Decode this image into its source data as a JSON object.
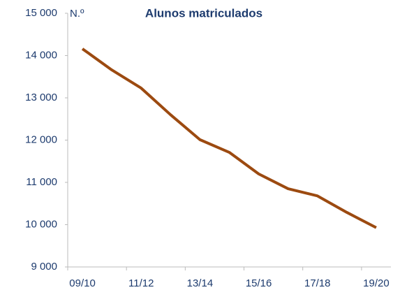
{
  "chart_data": {
    "type": "line",
    "title": "Alunos matriculados",
    "y_label": "N.º",
    "categories": [
      "09/10",
      null,
      "11/12",
      null,
      "13/14",
      null,
      "15/16",
      null,
      "17/18",
      null,
      "19/20"
    ],
    "series": [
      {
        "name": "Alunos matriculados",
        "color": "#9c4a10",
        "values": [
          14160,
          13660,
          13230,
          12600,
          12010,
          11710,
          11200,
          10850,
          10680,
          10290,
          9930
        ]
      }
    ],
    "ylim": [
      9000,
      15000
    ],
    "yticks": [
      {
        "value": 9000,
        "label": "9 000"
      },
      {
        "value": 10000,
        "label": "10 000"
      },
      {
        "value": 11000,
        "label": "11 000"
      },
      {
        "value": 12000,
        "label": "12 000"
      },
      {
        "value": 13000,
        "label": "13 000"
      },
      {
        "value": 14000,
        "label": "14 000"
      },
      {
        "value": 15000,
        "label": "15 000"
      }
    ],
    "grid": false
  }
}
